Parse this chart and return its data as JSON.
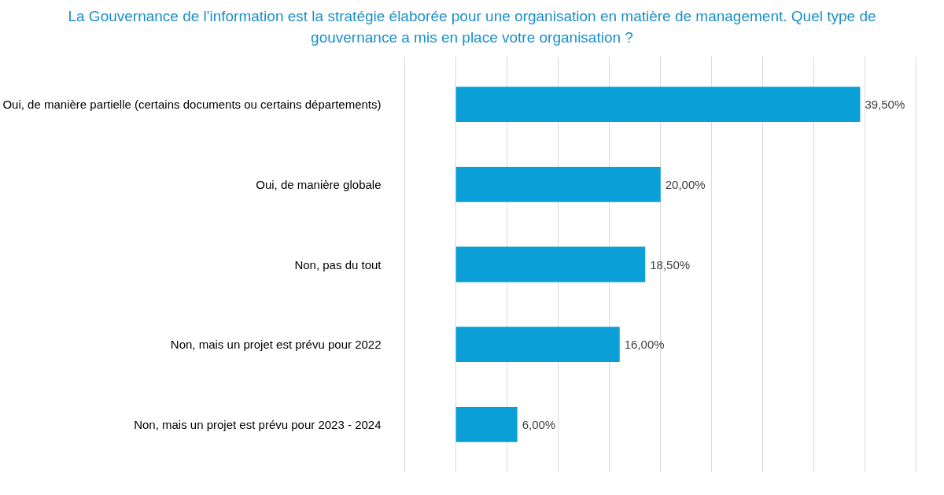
{
  "chart_data": {
    "type": "bar",
    "orientation": "horizontal",
    "title": "La Gouvernance de l'information est la stratégie élaborée pour une organisation en matière de management. Quel type de gouvernance a mis en place votre organisation ?",
    "categories": [
      "Oui, de manière partielle (certains documents ou certains départements)",
      "Oui, de manière globale",
      "Non, pas du tout",
      "Non, mais un projet est prévu pour 2022",
      "Non, mais un projet est prévu pour 2023 - 2024"
    ],
    "values": [
      39.5,
      20.0,
      18.5,
      16.0,
      6.0
    ],
    "value_labels": [
      "39,50%",
      "20,00%",
      "18,50%",
      "16,00%",
      "6,00%"
    ],
    "color": "#0a9fd6",
    "grid": "x",
    "tick_labels": "y"
  }
}
